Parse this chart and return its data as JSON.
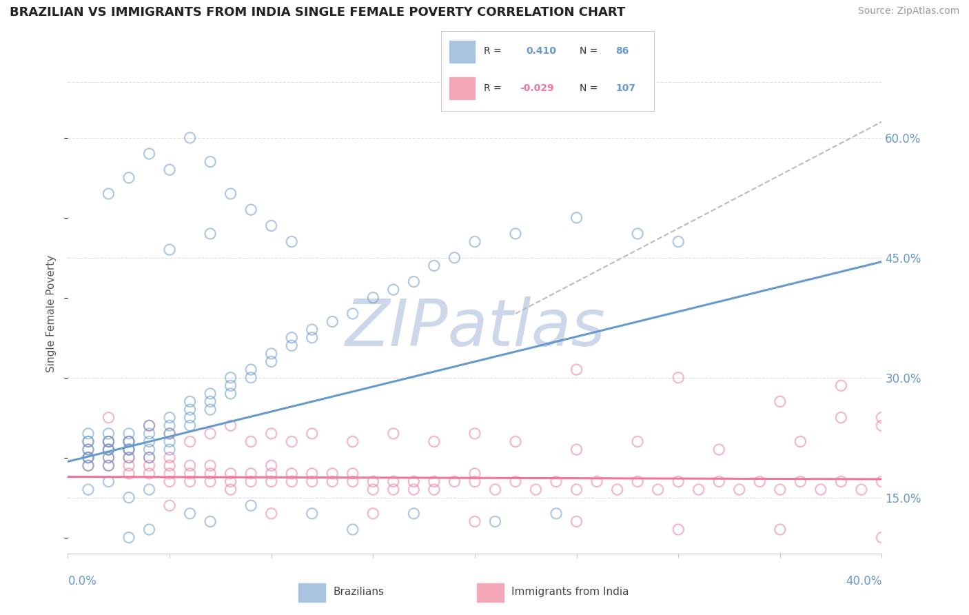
{
  "title": "BRAZILIAN VS IMMIGRANTS FROM INDIA SINGLE FEMALE POVERTY CORRELATION CHART",
  "source": "Source: ZipAtlas.com",
  "ylabel_label": "Single Female Poverty",
  "ylabel_ticks": [
    "15.0%",
    "30.0%",
    "45.0%",
    "60.0%"
  ],
  "ytick_vals": [
    0.15,
    0.3,
    0.45,
    0.6
  ],
  "xlim": [
    0.0,
    0.4
  ],
  "ylim": [
    0.08,
    0.68
  ],
  "blue_color": "#6699cc",
  "pink_color": "#ee7799",
  "gray_line_color": "#bbbbbb",
  "scatter_alpha": 0.55,
  "scatter_size": 120,
  "background_color": "#ffffff",
  "grid_color": "#dddddd",
  "watermark": "ZIPatlas",
  "watermark_color": "#ccd8ea",
  "blue_trend": [
    0.0,
    0.195,
    0.4,
    0.445
  ],
  "pink_trend": [
    0.0,
    0.176,
    0.4,
    0.173
  ],
  "gray_dash": [
    0.22,
    0.38,
    0.4,
    0.62
  ],
  "blue_scatter_x": [
    0.01,
    0.01,
    0.01,
    0.01,
    0.01,
    0.01,
    0.01,
    0.02,
    0.02,
    0.02,
    0.02,
    0.02,
    0.02,
    0.02,
    0.03,
    0.03,
    0.03,
    0.03,
    0.03,
    0.03,
    0.04,
    0.04,
    0.04,
    0.04,
    0.04,
    0.05,
    0.05,
    0.05,
    0.05,
    0.05,
    0.06,
    0.06,
    0.06,
    0.06,
    0.07,
    0.07,
    0.07,
    0.08,
    0.08,
    0.08,
    0.09,
    0.09,
    0.1,
    0.1,
    0.11,
    0.11,
    0.12,
    0.12,
    0.13,
    0.14,
    0.15,
    0.16,
    0.17,
    0.18,
    0.19,
    0.2,
    0.22,
    0.25,
    0.28,
    0.3,
    0.02,
    0.03,
    0.04,
    0.05,
    0.06,
    0.07,
    0.08,
    0.09,
    0.1,
    0.11,
    0.03,
    0.04,
    0.06,
    0.07,
    0.09,
    0.12,
    0.14,
    0.17,
    0.21,
    0.24,
    0.01,
    0.02,
    0.03,
    0.04,
    0.05,
    0.07
  ],
  "blue_scatter_y": [
    0.21,
    0.22,
    0.22,
    0.23,
    0.2,
    0.19,
    0.2,
    0.22,
    0.21,
    0.23,
    0.22,
    0.21,
    0.2,
    0.19,
    0.23,
    0.22,
    0.21,
    0.22,
    0.21,
    0.2,
    0.23,
    0.24,
    0.22,
    0.21,
    0.2,
    0.25,
    0.24,
    0.23,
    0.22,
    0.21,
    0.26,
    0.25,
    0.27,
    0.24,
    0.28,
    0.27,
    0.26,
    0.3,
    0.29,
    0.28,
    0.31,
    0.3,
    0.33,
    0.32,
    0.35,
    0.34,
    0.36,
    0.35,
    0.37,
    0.38,
    0.4,
    0.41,
    0.42,
    0.44,
    0.45,
    0.47,
    0.48,
    0.5,
    0.48,
    0.47,
    0.53,
    0.55,
    0.58,
    0.56,
    0.6,
    0.57,
    0.53,
    0.51,
    0.49,
    0.47,
    0.1,
    0.11,
    0.13,
    0.12,
    0.14,
    0.13,
    0.11,
    0.13,
    0.12,
    0.13,
    0.16,
    0.17,
    0.15,
    0.16,
    0.46,
    0.48
  ],
  "pink_scatter_x": [
    0.01,
    0.01,
    0.01,
    0.02,
    0.02,
    0.02,
    0.02,
    0.03,
    0.03,
    0.03,
    0.03,
    0.04,
    0.04,
    0.04,
    0.05,
    0.05,
    0.05,
    0.05,
    0.06,
    0.06,
    0.06,
    0.07,
    0.07,
    0.07,
    0.08,
    0.08,
    0.08,
    0.09,
    0.09,
    0.1,
    0.1,
    0.1,
    0.11,
    0.11,
    0.12,
    0.12,
    0.13,
    0.13,
    0.14,
    0.14,
    0.15,
    0.15,
    0.16,
    0.16,
    0.17,
    0.17,
    0.18,
    0.18,
    0.19,
    0.2,
    0.2,
    0.21,
    0.22,
    0.23,
    0.24,
    0.25,
    0.26,
    0.27,
    0.28,
    0.29,
    0.3,
    0.31,
    0.32,
    0.33,
    0.34,
    0.35,
    0.36,
    0.37,
    0.38,
    0.39,
    0.4,
    0.05,
    0.1,
    0.15,
    0.2,
    0.25,
    0.3,
    0.35,
    0.4,
    0.02,
    0.03,
    0.04,
    0.05,
    0.06,
    0.07,
    0.08,
    0.09,
    0.1,
    0.11,
    0.12,
    0.14,
    0.16,
    0.18,
    0.2,
    0.22,
    0.25,
    0.28,
    0.32,
    0.36,
    0.38,
    0.4,
    0.3,
    0.35,
    0.38,
    0.4,
    0.25
  ],
  "pink_scatter_y": [
    0.21,
    0.2,
    0.19,
    0.22,
    0.21,
    0.2,
    0.19,
    0.21,
    0.2,
    0.19,
    0.18,
    0.2,
    0.19,
    0.18,
    0.2,
    0.19,
    0.18,
    0.17,
    0.19,
    0.18,
    0.17,
    0.19,
    0.18,
    0.17,
    0.18,
    0.17,
    0.16,
    0.18,
    0.17,
    0.19,
    0.18,
    0.17,
    0.18,
    0.17,
    0.18,
    0.17,
    0.18,
    0.17,
    0.18,
    0.17,
    0.17,
    0.16,
    0.17,
    0.16,
    0.17,
    0.16,
    0.17,
    0.16,
    0.17,
    0.18,
    0.17,
    0.16,
    0.17,
    0.16,
    0.17,
    0.16,
    0.17,
    0.16,
    0.17,
    0.16,
    0.17,
    0.16,
    0.17,
    0.16,
    0.17,
    0.16,
    0.17,
    0.16,
    0.17,
    0.16,
    0.17,
    0.14,
    0.13,
    0.13,
    0.12,
    0.12,
    0.11,
    0.11,
    0.1,
    0.25,
    0.22,
    0.24,
    0.23,
    0.22,
    0.23,
    0.24,
    0.22,
    0.23,
    0.22,
    0.23,
    0.22,
    0.23,
    0.22,
    0.23,
    0.22,
    0.21,
    0.22,
    0.21,
    0.22,
    0.29,
    0.25,
    0.3,
    0.27,
    0.25,
    0.24,
    0.31
  ]
}
